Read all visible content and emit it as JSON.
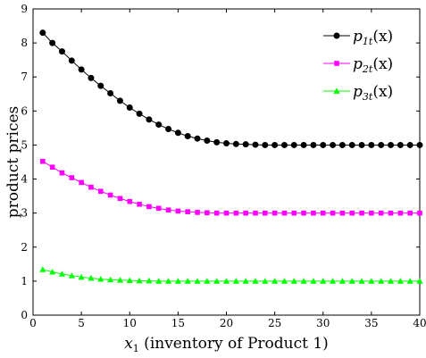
{
  "chart_data": {
    "type": "line",
    "title": "",
    "xlabel_math": "x",
    "xlabel_sub": "1",
    "xlabel_text": " (inventory of Product 1)",
    "ylabel": "product prices",
    "xlim": [
      0,
      40
    ],
    "ylim": [
      0,
      9
    ],
    "xticks": [
      0,
      5,
      10,
      15,
      20,
      25,
      30,
      35,
      40
    ],
    "yticks": [
      0,
      1,
      2,
      3,
      4,
      5,
      6,
      7,
      8,
      9
    ],
    "grid": false,
    "legend_position": "top-right",
    "x": [
      1,
      2,
      3,
      4,
      5,
      6,
      7,
      8,
      9,
      10,
      11,
      12,
      13,
      14,
      15,
      16,
      17,
      18,
      19,
      20,
      21,
      22,
      23,
      24,
      25,
      26,
      27,
      28,
      29,
      30,
      31,
      32,
      33,
      34,
      35,
      36,
      37,
      38,
      39,
      40
    ],
    "series": [
      {
        "name_base": "p",
        "name_sub": "1t",
        "name_suffix": "(x)",
        "color": "#000000",
        "marker": "circle",
        "values": [
          8.3,
          8.0,
          7.75,
          7.48,
          7.22,
          6.97,
          6.74,
          6.52,
          6.3,
          6.1,
          5.92,
          5.75,
          5.6,
          5.47,
          5.36,
          5.26,
          5.19,
          5.13,
          5.08,
          5.05,
          5.03,
          5.02,
          5.01,
          5.0,
          5.0,
          5.0,
          5.0,
          5.0,
          5.0,
          5.0,
          5.0,
          5.0,
          5.0,
          5.0,
          5.0,
          5.0,
          5.0,
          5.0,
          5.0,
          5.0
        ]
      },
      {
        "name_base": "p",
        "name_sub": "2t",
        "name_suffix": "(x)",
        "color": "#ff00ff",
        "marker": "square",
        "values": [
          4.52,
          4.35,
          4.18,
          4.04,
          3.9,
          3.76,
          3.64,
          3.53,
          3.43,
          3.34,
          3.26,
          3.19,
          3.14,
          3.09,
          3.06,
          3.04,
          3.02,
          3.01,
          3.0,
          3.0,
          3.0,
          3.0,
          3.0,
          3.0,
          3.0,
          3.0,
          3.0,
          3.0,
          3.0,
          3.0,
          3.0,
          3.0,
          3.0,
          3.0,
          3.0,
          3.0,
          3.0,
          3.0,
          3.0,
          3.0
        ]
      },
      {
        "name_base": "p",
        "name_sub": "3t",
        "name_suffix": "(x)",
        "color": "#00ff00",
        "marker": "triangle",
        "values": [
          1.34,
          1.27,
          1.21,
          1.16,
          1.12,
          1.09,
          1.06,
          1.04,
          1.03,
          1.02,
          1.01,
          1.01,
          1.0,
          1.0,
          1.0,
          1.0,
          1.0,
          1.0,
          1.0,
          1.0,
          1.0,
          1.0,
          1.0,
          1.0,
          1.0,
          1.0,
          1.0,
          1.0,
          1.0,
          1.0,
          1.0,
          1.0,
          1.0,
          1.0,
          1.0,
          1.0,
          1.0,
          1.0,
          1.0,
          1.0
        ]
      }
    ]
  }
}
